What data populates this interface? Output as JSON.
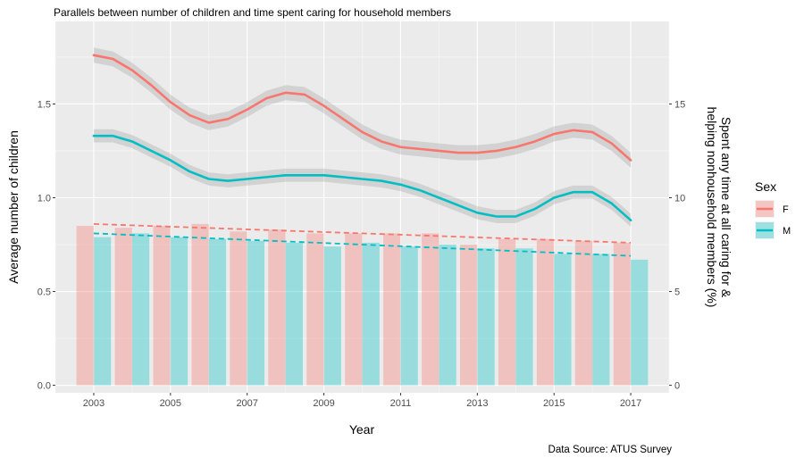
{
  "chart_data": {
    "type": "bar",
    "title": "Parallels between number of children and time spent caring for household members",
    "caption": "Data Source: ATUS Survey",
    "xlabel": "Year",
    "ylabel": "Average number of children",
    "y2label_line1": "Spent any time at all caring for &",
    "y2label_line2": "helping nonhousehold members (%)",
    "xlim": [
      2002,
      2018
    ],
    "ylim": [
      -0.04,
      1.94
    ],
    "y2_scale": 10,
    "x_ticks": [
      "2003",
      "2005",
      "2007",
      "2009",
      "2011",
      "2013",
      "2015",
      "2017"
    ],
    "y_ticks": [
      "0.0",
      "0.5",
      "1.0",
      "1.5"
    ],
    "y2_ticks": [
      "0",
      "5",
      "10",
      "15"
    ],
    "grid": true,
    "years": [
      2003,
      2004,
      2005,
      2006,
      2007,
      2008,
      2009,
      2010,
      2011,
      2012,
      2013,
      2014,
      2015,
      2016,
      2017
    ],
    "bars": [
      {
        "name": "F",
        "color": "#F8766D",
        "values": [
          0.85,
          0.84,
          0.85,
          0.86,
          0.82,
          0.83,
          0.81,
          0.81,
          0.81,
          0.81,
          0.75,
          0.78,
          0.78,
          0.77,
          0.76
        ]
      },
      {
        "name": "M",
        "color": "#00BFC4",
        "values": [
          0.79,
          0.81,
          0.79,
          0.78,
          0.77,
          0.76,
          0.74,
          0.76,
          0.74,
          0.75,
          0.73,
          0.73,
          0.7,
          0.7,
          0.67
        ]
      }
    ],
    "smooth_lines": [
      {
        "name": "F",
        "color": "#F8766D",
        "x": [
          2003,
          2003.5,
          2004,
          2004.5,
          2005,
          2005.5,
          2006,
          2006.5,
          2007,
          2007.5,
          2008,
          2008.5,
          2009,
          2009.5,
          2010,
          2010.5,
          2011,
          2011.5,
          2012,
          2012.5,
          2013,
          2013.5,
          2014,
          2014.5,
          2015,
          2015.5,
          2016,
          2016.5,
          2017
        ],
        "y": [
          1.76,
          1.74,
          1.68,
          1.6,
          1.51,
          1.44,
          1.4,
          1.42,
          1.47,
          1.53,
          1.56,
          1.55,
          1.49,
          1.42,
          1.35,
          1.3,
          1.27,
          1.26,
          1.25,
          1.24,
          1.24,
          1.25,
          1.27,
          1.3,
          1.34,
          1.36,
          1.35,
          1.29,
          1.2
        ],
        "band": 0.04
      },
      {
        "name": "M",
        "color": "#00BFC4",
        "x": [
          2003,
          2003.5,
          2004,
          2004.5,
          2005,
          2005.5,
          2006,
          2006.5,
          2007,
          2007.5,
          2008,
          2008.5,
          2009,
          2009.5,
          2010,
          2010.5,
          2011,
          2011.5,
          2012,
          2012.5,
          2013,
          2013.5,
          2014,
          2014.5,
          2015,
          2015.5,
          2016,
          2016.5,
          2017
        ],
        "y": [
          1.33,
          1.33,
          1.3,
          1.25,
          1.2,
          1.14,
          1.1,
          1.09,
          1.1,
          1.11,
          1.12,
          1.12,
          1.12,
          1.11,
          1.1,
          1.09,
          1.07,
          1.04,
          1.0,
          0.96,
          0.92,
          0.9,
          0.9,
          0.94,
          1.0,
          1.03,
          1.03,
          0.97,
          0.88
        ],
        "band": 0.035
      }
    ],
    "trend_lines": [
      {
        "name": "F",
        "color": "#F8766D",
        "x": [
          2003,
          2017
        ],
        "y": [
          0.86,
          0.76
        ]
      },
      {
        "name": "M",
        "color": "#00BFC4",
        "x": [
          2003,
          2017
        ],
        "y": [
          0.81,
          0.69
        ]
      }
    ],
    "legend": {
      "title": "Sex",
      "position": "right",
      "items": [
        {
          "label": "F",
          "color": "#F8766D"
        },
        {
          "label": "M",
          "color": "#00BFC4"
        }
      ]
    }
  }
}
